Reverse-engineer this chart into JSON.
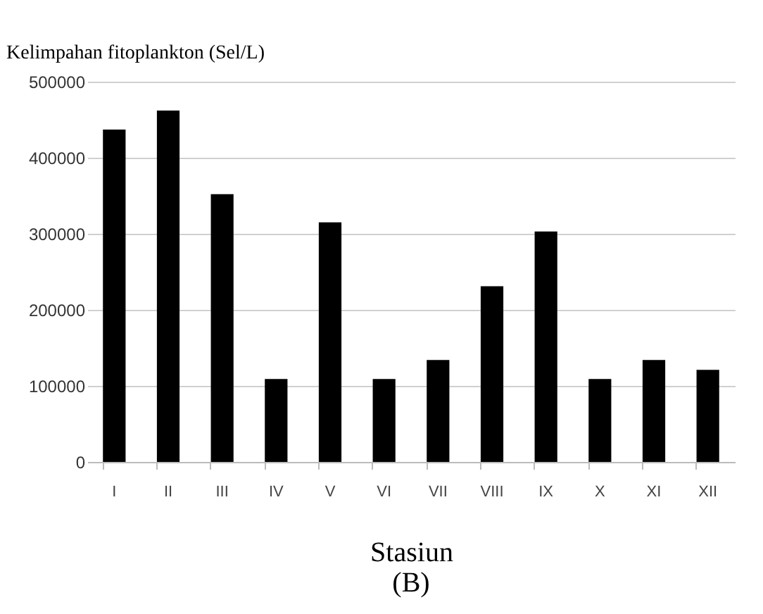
{
  "chart_data": {
    "type": "bar",
    "ylabel": "Kelimpahan fitoplankton (Sel/L)",
    "xlabel": "Stasiun",
    "annotations": [
      "(B)"
    ],
    "categories": [
      "I",
      "II",
      "III",
      "IV",
      "V",
      "VI",
      "VII",
      "VIII",
      "IX",
      "X",
      "XI",
      "XII"
    ],
    "values": [
      437000,
      462000,
      352000,
      109000,
      315000,
      109000,
      134000,
      231000,
      303000,
      109000,
      134000,
      121000
    ],
    "color": "#000000",
    "ylim": [
      0,
      500000
    ],
    "yticks": [
      0,
      100000,
      200000,
      300000,
      400000,
      500000
    ],
    "grid": "y"
  }
}
